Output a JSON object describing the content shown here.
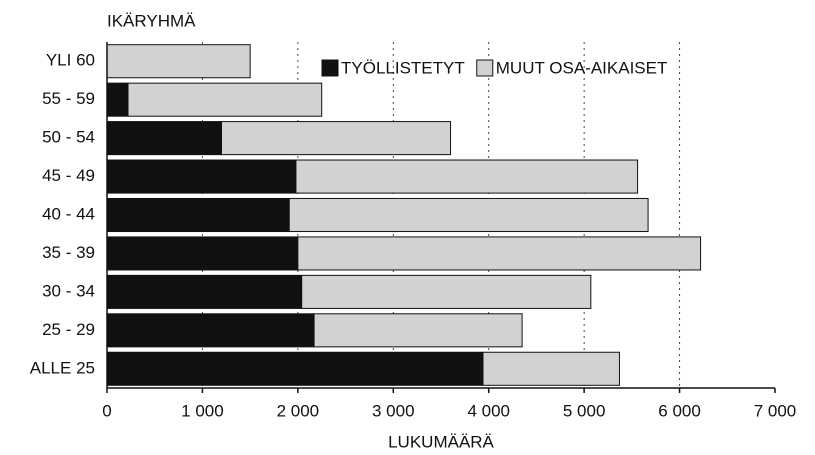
{
  "chart_data": {
    "type": "stacked_bar_horizontal",
    "title": "IKÄRYHMÄ",
    "x_label": "LUKUMÄÄRÄ",
    "categories": [
      "YLI 60",
      "55 - 59",
      "50 - 54",
      "45 - 49",
      "40 - 44",
      "35 - 39",
      "30 - 34",
      "25 - 29",
      "ALLE 25"
    ],
    "series": [
      {
        "name": "TYÖLLISTETYT",
        "color": "#111111",
        "values": [
          0,
          220,
          1200,
          1980,
          1910,
          2000,
          2040,
          2170,
          3940
        ]
      },
      {
        "name": "MUUT OSA-AIKAISET",
        "color": "#d2d2d2",
        "values": [
          1500,
          2030,
          2400,
          3580,
          3760,
          4220,
          3030,
          2180,
          1430
        ]
      }
    ],
    "xlim": [
      0,
      7000
    ],
    "xticks": [
      0,
      {
        "value": 1000,
        "label": "1 000"
      },
      {
        "value": 2000,
        "label": "2 000"
      },
      {
        "value": 3000,
        "label": "3 000"
      },
      {
        "value": 4000,
        "label": "4 000"
      },
      {
        "value": 5000,
        "label": "5 000"
      },
      {
        "value": 6000,
        "label": "6 000"
      },
      {
        "value": 7000,
        "label": "7 000"
      }
    ],
    "grid": true,
    "legend": "upper right"
  }
}
